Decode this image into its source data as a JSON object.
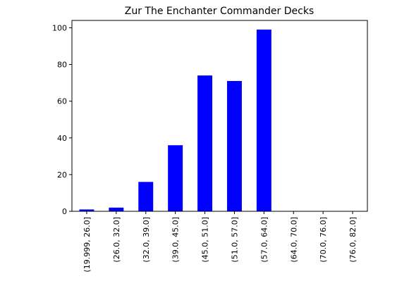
{
  "chart_data": {
    "type": "bar",
    "title": "Zur The Enchanter Commander Decks",
    "xlabel": "",
    "ylabel": "",
    "categories": [
      "(19.999, 26.0]",
      "(26.0, 32.0]",
      "(32.0, 39.0]",
      "(39.0, 45.0]",
      "(45.0, 51.0]",
      "(51.0, 57.0]",
      "(57.0, 64.0]",
      "(64.0, 70.0]",
      "(70.0, 76.0]",
      "(76.0, 82.0]"
    ],
    "values": [
      1,
      2,
      16,
      36,
      74,
      71,
      99,
      0,
      0,
      0
    ],
    "ylim": [
      0,
      104
    ],
    "yticks": [
      0,
      20,
      40,
      60,
      80,
      100
    ],
    "bar_color": "#0000ff",
    "grid": false,
    "legend": "none"
  }
}
